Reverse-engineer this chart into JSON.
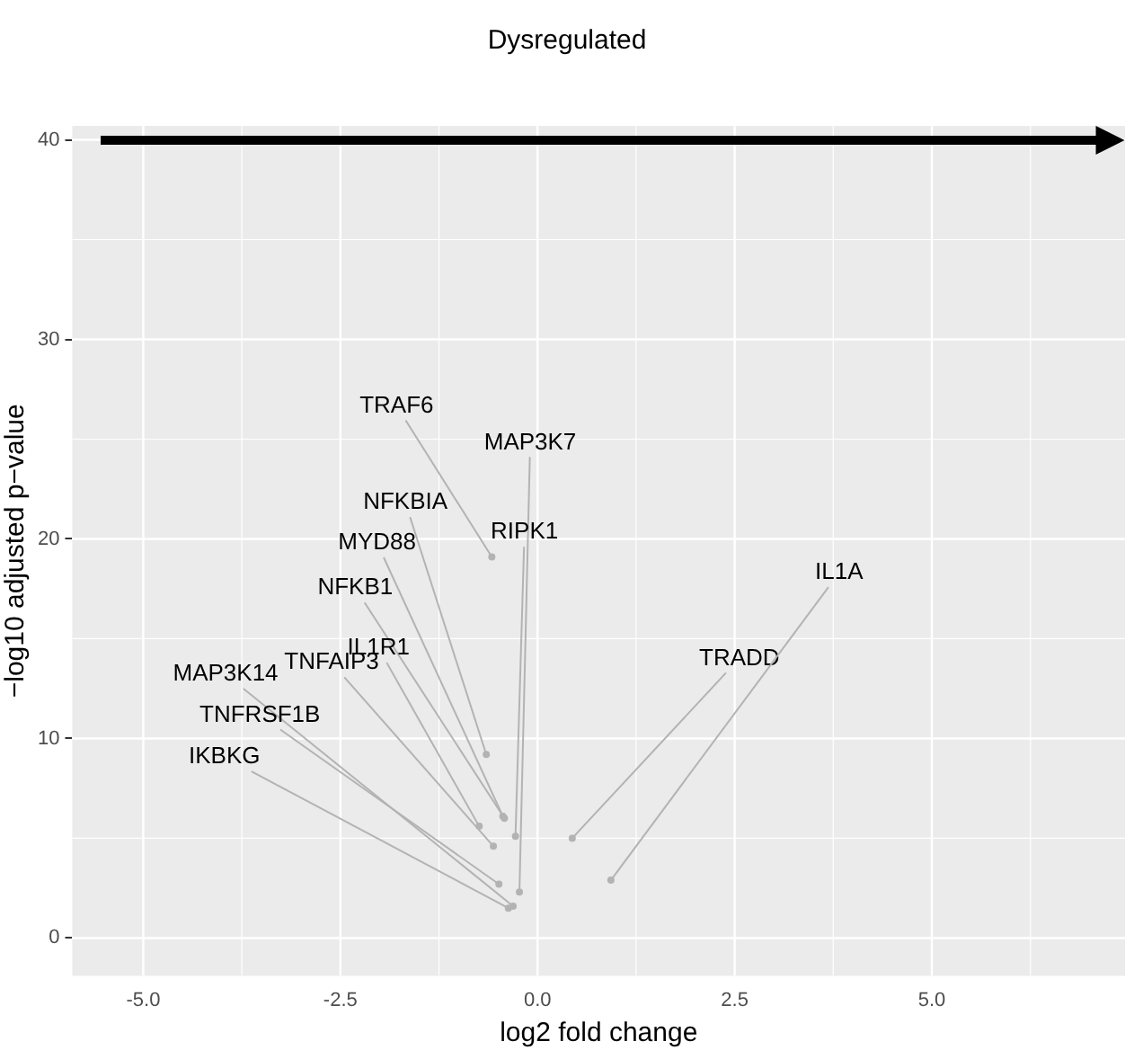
{
  "chart_data": {
    "type": "scatter",
    "title": "Dysregulated",
    "xlabel": "log2 fold change",
    "ylabel": "−log10 adjusted p−value",
    "x": [
      -0.58,
      -0.23,
      -0.65,
      -0.28,
      -0.44,
      -0.42,
      -0.74,
      -0.56,
      -0.31,
      -0.49,
      -0.37,
      0.44,
      0.93
    ],
    "values": [
      19.1,
      2.3,
      9.2,
      5.1,
      6.1,
      6.0,
      5.6,
      4.6,
      1.6,
      2.7,
      1.5,
      5.0,
      2.9
    ],
    "value_labels": [
      "TRAF6",
      "MAP3K7",
      "NFKBIA",
      "RIPK1",
      "MYD88",
      "NFKB1",
      "IL1R1",
      "TNFAIP3",
      "MAP3K14",
      "TNFRSF1B",
      "IKBKG",
      "TRADD",
      "IL1A"
    ],
    "color": "#b3b3b3",
    "marker": "circle",
    "xlim": [
      -5.9,
      7.45
    ],
    "ylim": [
      -1.9,
      40.7
    ],
    "xticks": [
      {
        "value": -5,
        "label": "-5.0"
      },
      {
        "value": -2.5,
        "label": "-2.5"
      },
      {
        "value": 0,
        "label": "0.0"
      },
      {
        "value": 2.5,
        "label": "2.5"
      },
      {
        "value": 5,
        "label": "5.0"
      }
    ],
    "yticks": [
      0,
      10,
      20,
      30,
      40
    ],
    "grid": true,
    "legend": false
  }
}
